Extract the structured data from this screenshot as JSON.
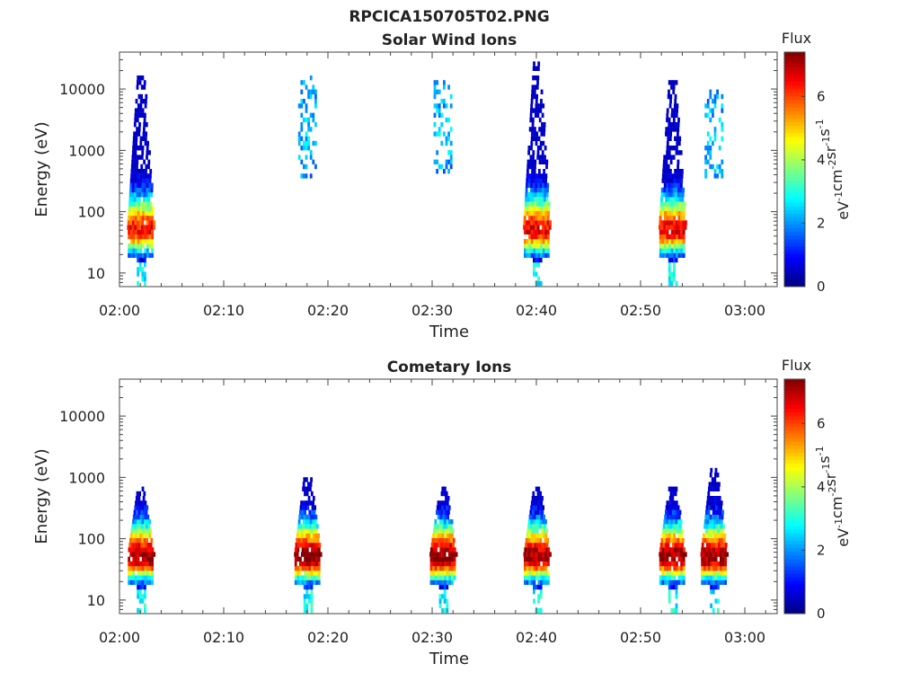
{
  "chart_data": {
    "title": "RPCICA150705T02.PNG",
    "colorbar": {
      "label": "Flux",
      "units": "eV-1cm-2sr-1s-1",
      "range": [
        0,
        7.4
      ],
      "ticks": [
        "0",
        "2",
        "4",
        "6"
      ]
    },
    "panels": [
      {
        "type": "heatmap",
        "title": "Solar Wind Ions",
        "xlabel": "Time",
        "ylabel": "Energy (eV)",
        "y_scale": "log",
        "ylim": [
          6,
          40000
        ],
        "x_ticks": [
          "02:00",
          "02:10",
          "02:20",
          "02:30",
          "02:40",
          "02:50",
          "03:00"
        ],
        "y_ticks": [
          "10",
          "100",
          "1000",
          "10000"
        ],
        "bursts": [
          {
            "time": "02:02",
            "peak_energy_eV": 45,
            "peak_flux": 6.4,
            "max_energy_eV": 15000
          },
          {
            "time": "02:18",
            "peak_energy_eV": 2000,
            "peak_flux": 2.4,
            "max_energy_eV": 15000
          },
          {
            "time": "02:31",
            "peak_energy_eV": 3000,
            "peak_flux": 2.4,
            "max_energy_eV": 13000
          },
          {
            "time": "02:40",
            "peak_energy_eV": 45,
            "peak_flux": 6.6,
            "max_energy_eV": 25000
          },
          {
            "time": "02:53",
            "peak_energy_eV": 45,
            "peak_flux": 6.6,
            "max_energy_eV": 13000
          },
          {
            "time": "02:57",
            "peak_energy_eV": 3000,
            "peak_flux": 2.4,
            "max_energy_eV": 9000
          }
        ]
      },
      {
        "type": "heatmap",
        "title": "Cometary Ions",
        "xlabel": "Time",
        "ylabel": "Energy (eV)",
        "y_scale": "log",
        "ylim": [
          6,
          40000
        ],
        "x_ticks": [
          "02:00",
          "02:10",
          "02:20",
          "02:30",
          "02:40",
          "02:50",
          "03:00"
        ],
        "y_ticks": [
          "10",
          "100",
          "1000",
          "10000"
        ],
        "bursts": [
          {
            "time": "02:02",
            "peak_energy_eV": 45,
            "peak_flux": 7.2,
            "max_energy_eV": 600
          },
          {
            "time": "02:18",
            "peak_energy_eV": 45,
            "peak_flux": 7.4,
            "max_energy_eV": 1000
          },
          {
            "time": "02:31",
            "peak_energy_eV": 45,
            "peak_flux": 7.4,
            "max_energy_eV": 600
          },
          {
            "time": "02:40",
            "peak_energy_eV": 45,
            "peak_flux": 7.2,
            "max_energy_eV": 600
          },
          {
            "time": "02:53",
            "peak_energy_eV": 45,
            "peak_flux": 7.2,
            "max_energy_eV": 650
          },
          {
            "time": "02:57",
            "peak_energy_eV": 45,
            "peak_flux": 7.2,
            "max_energy_eV": 1200
          }
        ]
      }
    ]
  }
}
